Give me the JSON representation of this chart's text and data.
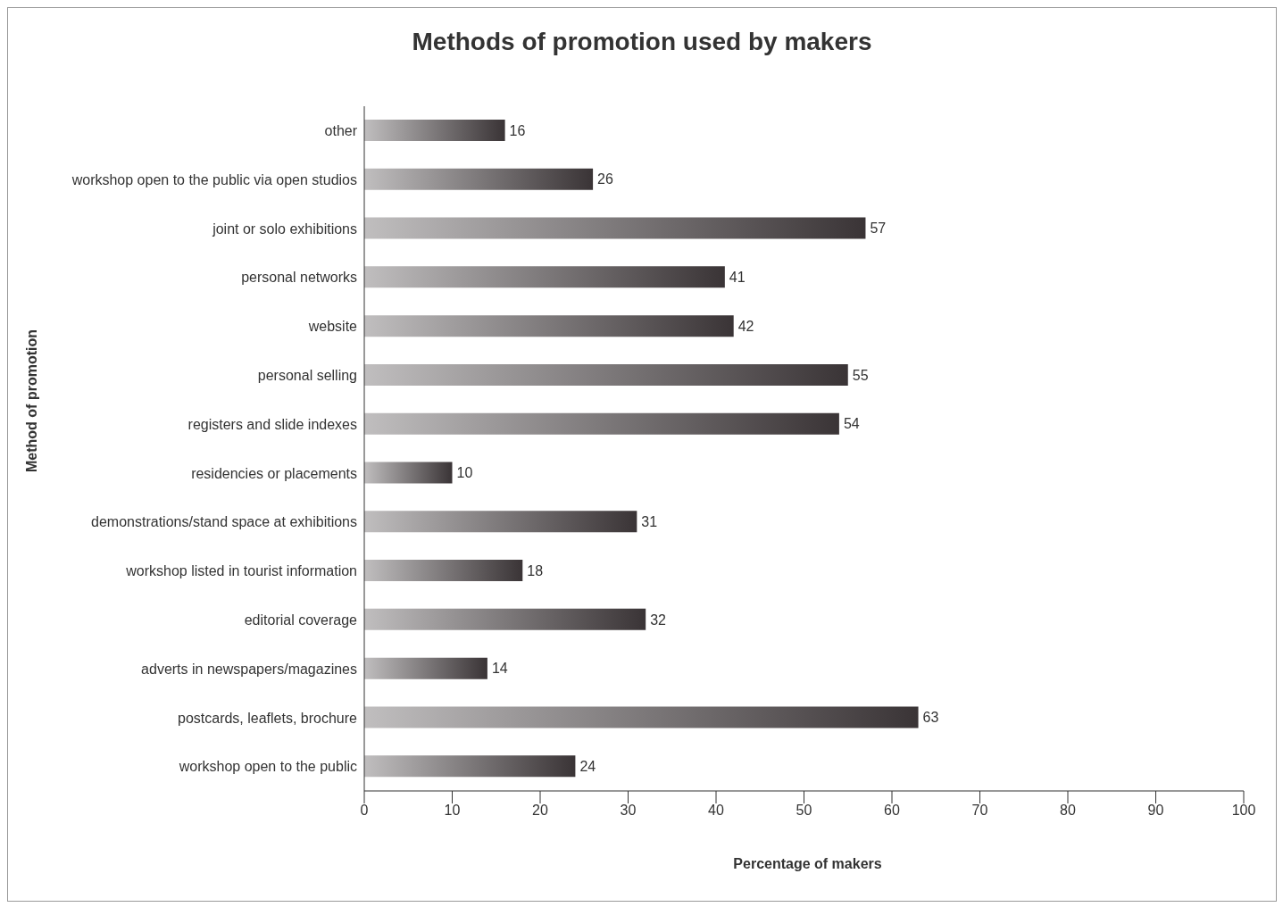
{
  "chart_data": {
    "type": "bar",
    "orientation": "horizontal",
    "title": "Methods of promotion used by makers",
    "xlabel": "Percentage of makers",
    "ylabel": "Method of promotion",
    "categories": [
      "other",
      "workshop open to the public via open studios",
      "joint or solo exhibitions",
      "personal networks",
      "website",
      "personal selling",
      "registers and slide indexes",
      "residencies or placements",
      "demonstrations/stand space at exhibitions",
      "workshop listed in tourist information",
      "editorial coverage",
      "adverts in newspapers/magazines",
      "postcards, leaflets, brochure",
      "workshop open to the public"
    ],
    "values": [
      16,
      26,
      57,
      41,
      42,
      55,
      54,
      10,
      31,
      18,
      32,
      14,
      63,
      24
    ],
    "color": "#3a3436",
    "xlim": [
      0,
      100
    ],
    "xticks": [
      0,
      10,
      20,
      30,
      40,
      50,
      60,
      70,
      80,
      90,
      100
    ],
    "data_labels": true,
    "grid": false
  }
}
